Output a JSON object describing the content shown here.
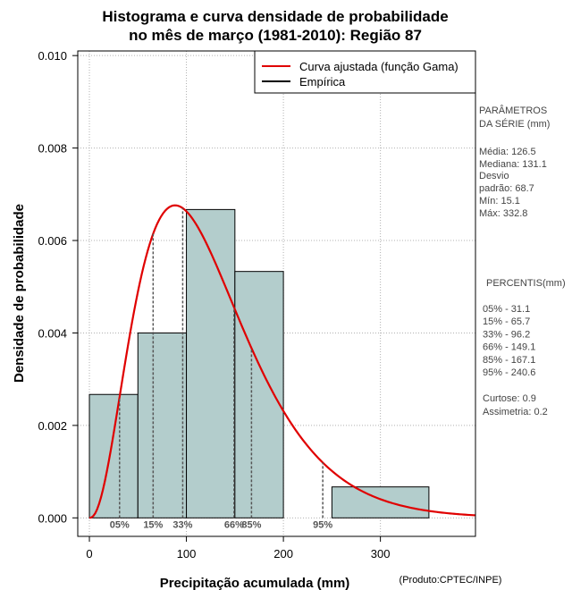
{
  "chart_data": {
    "type": "bar",
    "title_lines": [
      "Histograma e curva densidade de probabilidade",
      "no mês de março (1981-2010): Região 87"
    ],
    "xlabel": "Precipitação acumulada (mm)",
    "ylabel": "Densidade de probabilidade",
    "credit": "(Produto:CPTEC/INPE)",
    "xlim": [
      -12,
      398
    ],
    "ylim": [
      -0.0004,
      0.0101
    ],
    "x_ticks": [
      0,
      100,
      200,
      300
    ],
    "y_ticks": [
      "0.000",
      "0.002",
      "0.004",
      "0.006",
      "0.008",
      "0.010"
    ],
    "grid": true,
    "bars": [
      {
        "x0": 0,
        "x1": 50,
        "value": 0.00267
      },
      {
        "x0": 50,
        "x1": 100,
        "value": 0.004
      },
      {
        "x0": 100,
        "x1": 150,
        "value": 0.00667
      },
      {
        "x0": 150,
        "x1": 200,
        "value": 0.00533
      },
      {
        "x0": 250,
        "x1": 350,
        "value": 0.00067
      }
    ],
    "gamma_fit": {
      "shape": 3.4,
      "scale": 36.8,
      "scale_factor": 1.0,
      "color": "#e00000"
    },
    "bar_fill": "#b3cdcc",
    "legend": {
      "position": "top-right",
      "entries": [
        {
          "label": "Curva ajustada (função Gama)",
          "color": "#e00000"
        },
        {
          "label": "Empírica",
          "color": "#000000"
        }
      ]
    },
    "percentiles": [
      {
        "label": "05%",
        "value": 31.1
      },
      {
        "label": "15%",
        "value": 65.7
      },
      {
        "label": "33%",
        "value": 96.2
      },
      {
        "label": "66%",
        "value": 149.1
      },
      {
        "label": "85%",
        "value": 167.1
      },
      {
        "label": "95%",
        "value": 240.6
      }
    ]
  },
  "side_panel": {
    "params_title_1": "PARÂMETROS",
    "params_title_2": " DA SÉRIE (mm)",
    "media": "Média:  126.5",
    "mediana": "Mediana:  131.1",
    "desvio_1": "Desvio",
    "desvio_2": "padrão:  68.7",
    "min": "Mín:  15.1",
    "max": "Máx:  332.8",
    "pct_title": "PERCENTIS(mm)",
    "pct_lines": [
      "05% -   31.1",
      "15% -   65.7",
      "33% -   96.2",
      "66% -   149.1",
      "85% -   167.1",
      "95% -   240.6"
    ],
    "curtose": "Curtose:  0.9",
    "assimetria": "Assimetria:  0.2"
  }
}
